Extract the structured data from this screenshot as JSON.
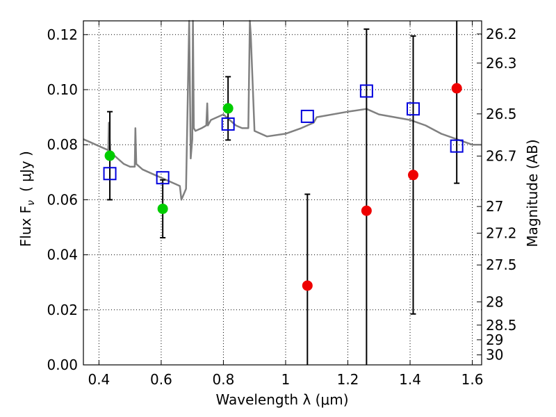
{
  "chart_data": {
    "type": "scatter",
    "xlabel": "Wavelength  λ (μm)",
    "ylabel": "Flux  F",
    "ylabel_sub": "ν",
    "ylabel_unit": "( μJy )",
    "ylabel_right": "Magnitude (AB)",
    "xlim": [
      0.35,
      1.63
    ],
    "ylim": [
      0.0,
      0.125
    ],
    "grid": true,
    "x_ticks": [
      0.4,
      0.6,
      0.8,
      1.0,
      1.2,
      1.4,
      1.6
    ],
    "x_tick_labels": [
      "0.4",
      "0.6",
      "0.8",
      "1",
      "1.2",
      "1.4",
      "1.6"
    ],
    "y_ticks": [
      0.0,
      0.02,
      0.04,
      0.06,
      0.08,
      0.1,
      0.12
    ],
    "y_tick_labels": [
      "0.00",
      "0.02",
      "0.04",
      "0.06",
      "0.08",
      "0.10",
      "0.12"
    ],
    "right_ticks_mag": [
      26.2,
      26.3,
      26.5,
      26.7,
      27,
      27.2,
      27.5,
      28,
      28.5,
      29,
      30
    ],
    "right_tick_labels": [
      "26.2",
      "26.3",
      "26.5",
      "26.7",
      "27",
      "27.2",
      "27.5",
      "28",
      "28.5",
      "29",
      "30"
    ],
    "colors": {
      "spectrum": "#808080",
      "green": "#00cc00",
      "red": "#ee0000",
      "model": "#0000dd",
      "errorbar": "#000000"
    },
    "series": [
      {
        "name": "model spectrum",
        "kind": "line",
        "x": [
          0.35,
          0.37,
          0.39,
          0.41,
          0.43,
          0.432,
          0.436,
          0.44,
          0.46,
          0.48,
          0.5,
          0.515,
          0.517,
          0.52,
          0.54,
          0.56,
          0.58,
          0.6,
          0.62,
          0.64,
          0.66,
          0.665,
          0.68,
          0.69,
          0.695,
          0.7,
          0.702,
          0.705,
          0.71,
          0.73,
          0.745,
          0.748,
          0.75,
          0.76,
          0.78,
          0.8,
          0.82,
          0.84,
          0.86,
          0.88,
          0.885,
          0.888,
          0.9,
          0.92,
          0.94,
          1.0,
          1.05,
          1.09,
          1.1,
          1.2,
          1.26,
          1.3,
          1.35,
          1.4,
          1.45,
          1.5,
          1.55,
          1.6,
          1.63
        ],
        "y": [
          0.082,
          0.081,
          0.08,
          0.079,
          0.078,
          0.088,
          0.078,
          0.077,
          0.075,
          0.073,
          0.072,
          0.072,
          0.086,
          0.073,
          0.071,
          0.07,
          0.069,
          0.068,
          0.067,
          0.066,
          0.065,
          0.06,
          0.064,
          0.13,
          0.075,
          0.082,
          0.13,
          0.086,
          0.085,
          0.086,
          0.087,
          0.095,
          0.087,
          0.089,
          0.09,
          0.091,
          0.089,
          0.087,
          0.086,
          0.086,
          0.13,
          0.12,
          0.085,
          0.084,
          0.083,
          0.084,
          0.086,
          0.088,
          0.09,
          0.092,
          0.093,
          0.091,
          0.09,
          0.089,
          0.087,
          0.084,
          0.082,
          0.08,
          0.08
        ]
      },
      {
        "name": "observed (green)",
        "kind": "points",
        "points": [
          {
            "x": 0.435,
            "y": 0.076,
            "err": 0.016
          },
          {
            "x": 0.605,
            "y": 0.0567,
            "err": 0.0105
          },
          {
            "x": 0.815,
            "y": 0.0932,
            "err": 0.0115
          }
        ]
      },
      {
        "name": "observed (red)",
        "kind": "points",
        "points": [
          {
            "x": 1.07,
            "y": 0.0288,
            "err": 0.0332
          },
          {
            "x": 1.26,
            "y": 0.056,
            "err": 0.066
          },
          {
            "x": 1.41,
            "y": 0.069,
            "err": 0.0505
          },
          {
            "x": 1.55,
            "y": 0.1005,
            "err": 0.0345
          }
        ]
      },
      {
        "name": "model photometry",
        "kind": "squares",
        "points": [
          {
            "x": 0.435,
            "y": 0.0695
          },
          {
            "x": 0.605,
            "y": 0.068
          },
          {
            "x": 0.815,
            "y": 0.0875
          },
          {
            "x": 1.07,
            "y": 0.0903
          },
          {
            "x": 1.26,
            "y": 0.0995
          },
          {
            "x": 1.41,
            "y": 0.093
          },
          {
            "x": 1.55,
            "y": 0.0795
          }
        ]
      }
    ]
  }
}
